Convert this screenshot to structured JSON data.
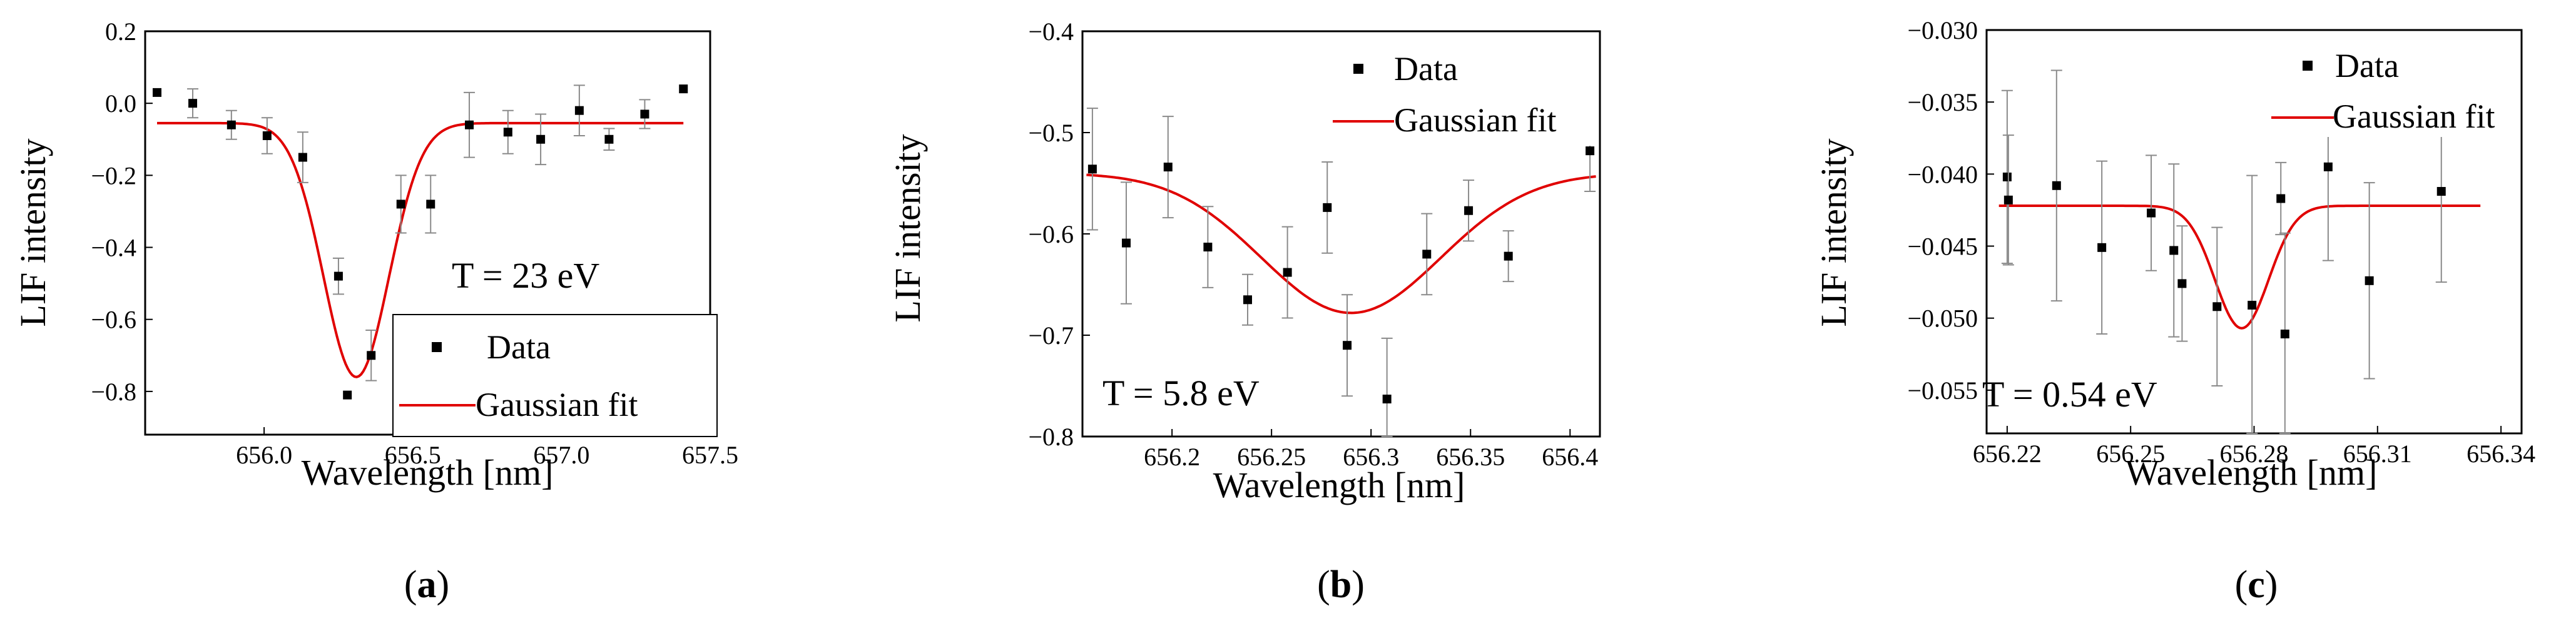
{
  "captions": [
    "a",
    "b",
    "c"
  ],
  "chart_data": [
    {
      "type": "scatter",
      "panel": "a",
      "xlabel": "Wavelength [nm]",
      "ylabel": "LIF intensity",
      "xlim": [
        655.6,
        657.5
      ],
      "ylim": [
        -0.92,
        0.2
      ],
      "xticks": [
        656.0,
        656.5,
        657.0,
        657.5
      ],
      "xtick_labels": [
        "656.0",
        "656.5",
        "657.0",
        "657.5"
      ],
      "yticks": [
        0.2,
        0.0,
        -0.2,
        -0.4,
        -0.6,
        -0.8
      ],
      "ytick_labels": [
        "0.2",
        "0.0",
        "−0.2",
        "−0.4",
        "−0.6",
        "−0.8"
      ],
      "annotation": "T = 23 eV",
      "legend": [
        "Data",
        "Gaussian fit"
      ],
      "colors": {
        "data": "#000000",
        "fit": "#e00000",
        "errorbar": "#8a8a8a"
      },
      "series": [
        {
          "name": "Data",
          "x": [
            655.64,
            655.76,
            655.89,
            656.01,
            656.13,
            656.25,
            656.28,
            656.36,
            656.46,
            656.56,
            656.69,
            656.82,
            656.93,
            657.06,
            657.16,
            657.28,
            657.41
          ],
          "y": [
            0.03,
            0.0,
            -0.06,
            -0.09,
            -0.15,
            -0.48,
            -0.81,
            -0.7,
            -0.28,
            -0.28,
            -0.06,
            -0.08,
            -0.1,
            -0.02,
            -0.1,
            -0.03,
            0.04
          ],
          "err": [
            0.0,
            0.04,
            0.04,
            0.05,
            0.07,
            0.05,
            0.0,
            0.07,
            0.08,
            0.08,
            0.09,
            0.06,
            0.07,
            0.07,
            0.03,
            0.04,
            0.0
          ]
        },
        {
          "name": "Gaussian fit",
          "model": "gaussian",
          "x_range": [
            655.64,
            657.41
          ],
          "baseline": -0.055,
          "amplitude": -0.705,
          "center": 656.31,
          "sigma": 0.11
        }
      ]
    },
    {
      "type": "scatter",
      "panel": "b",
      "xlabel": "Wavelength [nm]",
      "ylabel": "LIF intensity",
      "xlim": [
        656.155,
        656.415
      ],
      "ylim": [
        -0.8,
        -0.4
      ],
      "xticks": [
        656.2,
        656.25,
        656.3,
        656.35,
        656.4
      ],
      "xtick_labels": [
        "656.2",
        "656.25",
        "656.3",
        "656.35",
        "656.4"
      ],
      "yticks": [
        -0.4,
        -0.5,
        -0.6,
        -0.7,
        -0.8
      ],
      "ytick_labels": [
        "−0.4",
        "−0.5",
        "−0.6",
        "−0.7",
        "−0.8"
      ],
      "annotation": "T = 5.8 eV",
      "legend": [
        "Data",
        "Gaussian fit"
      ],
      "colors": {
        "data": "#000000",
        "fit": "#e00000",
        "errorbar": "#8a8a8a"
      },
      "series": [
        {
          "name": "Data",
          "x": [
            656.16,
            656.177,
            656.198,
            656.218,
            656.238,
            656.258,
            656.278,
            656.288,
            656.308,
            656.328,
            656.349,
            656.369,
            656.41
          ],
          "y": [
            -0.536,
            -0.609,
            -0.534,
            -0.613,
            -0.665,
            -0.638,
            -0.574,
            -0.71,
            -0.763,
            -0.62,
            -0.577,
            -0.622,
            -0.518
          ],
          "err": [
            0.06,
            0.06,
            0.05,
            0.04,
            0.025,
            0.045,
            0.045,
            0.05,
            0.06,
            0.04,
            0.03,
            0.025,
            0.04
          ]
        },
        {
          "name": "Gaussian fit",
          "model": "gaussian",
          "x_range": [
            656.157,
            656.413
          ],
          "baseline": -0.54,
          "amplitude": -0.138,
          "center": 656.29,
          "sigma": 0.045
        }
      ]
    },
    {
      "type": "scatter",
      "panel": "c",
      "xlabel": "Wavelength [nm]",
      "ylabel": "LIF intensity",
      "xlim": [
        656.215,
        656.345
      ],
      "ylim": [
        -0.058,
        -0.03
      ],
      "xticks": [
        656.22,
        656.25,
        656.28,
        656.31,
        656.34
      ],
      "xtick_labels": [
        "656.22",
        "656.25",
        "656.28",
        "656.31",
        "656.34"
      ],
      "yticks": [
        -0.03,
        -0.035,
        -0.04,
        -0.045,
        -0.05,
        -0.055
      ],
      "ytick_labels": [
        "−0.030",
        "−0.035",
        "−0.040",
        "−0.045",
        "−0.050",
        "−0.055"
      ],
      "annotation": "T = 0.54 eV",
      "legend": [
        "Data",
        "Gaussian fit"
      ],
      "colors": {
        "data": "#000000",
        "fit": "#e00000",
        "errorbar": "#8a8a8a"
      },
      "series": [
        {
          "name": "Data",
          "x": [
            656.22,
            656.2203,
            656.232,
            656.243,
            656.255,
            656.2605,
            656.2625,
            656.271,
            656.2795,
            656.2865,
            656.2875,
            656.298,
            656.308,
            656.3255
          ],
          "y": [
            -0.0402,
            -0.0418,
            -0.0408,
            -0.0451,
            -0.0427,
            -0.0453,
            -0.0476,
            -0.0492,
            -0.0491,
            -0.0417,
            -0.0511,
            -0.0395,
            -0.0474,
            -0.0412
          ],
          "err": [
            0.006,
            0.0045,
            0.008,
            0.006,
            0.004,
            0.006,
            0.004,
            0.0055,
            0.009,
            0.0025,
            0.007,
            0.0065,
            0.0068,
            0.0063
          ]
        },
        {
          "name": "Gaussian fit",
          "model": "gaussian",
          "x_range": [
            656.218,
            656.335
          ],
          "baseline": -0.0422,
          "amplitude": -0.0085,
          "center": 656.277,
          "sigma": 0.0065
        }
      ]
    }
  ]
}
